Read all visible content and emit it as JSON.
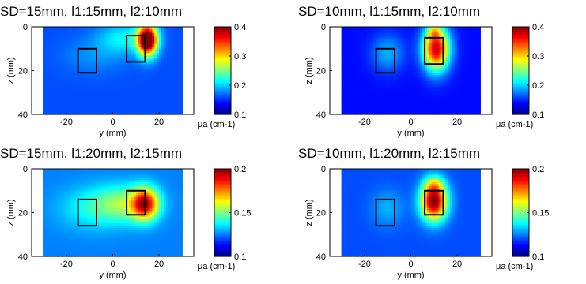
{
  "chart_data": [
    {
      "type": "heatmap",
      "title": "SD=15mm, l1:15mm, l2:10mm",
      "xlabel": "y (mm)",
      "ylabel": "z (mm)",
      "colorbar_label": "μa (cm-1)",
      "xlim": [
        -35,
        35
      ],
      "ylim": [
        0,
        40
      ],
      "xticks": [
        "-20",
        "0",
        "20"
      ],
      "yticks": [
        "0",
        "20",
        "40"
      ],
      "clim": [
        0.1,
        0.4
      ],
      "colorbar_ticks": [
        "0.1",
        "0.2",
        "0.3",
        "0.4"
      ],
      "background": 0.16,
      "hotspots": [
        {
          "y": 15,
          "z": 6,
          "sy": 3,
          "sz": 5,
          "amp": 0.28
        },
        {
          "y": 5,
          "z": 5,
          "sy": 8,
          "sz": 5,
          "amp": 0.05
        },
        {
          "y": -8,
          "z": 13,
          "sy": 10,
          "sz": 6,
          "amp": 0.02
        }
      ],
      "inclusions": [
        {
          "y_min": -15,
          "y_max": -7,
          "z_min": 10,
          "z_max": 21
        },
        {
          "y_min": 6,
          "y_max": 14,
          "z_min": 4,
          "z_max": 16
        }
      ]
    },
    {
      "type": "heatmap",
      "title": "SD=10mm, l1:15mm, l2:10mm",
      "xlabel": "y (mm)",
      "ylabel": "z (mm)",
      "colorbar_label": "μa (cm-1)",
      "xlim": [
        -35,
        35
      ],
      "ylim": [
        0,
        40
      ],
      "xticks": [
        "-20",
        "0",
        "20"
      ],
      "yticks": [
        "0",
        "20",
        "40"
      ],
      "clim": [
        0.1,
        0.4
      ],
      "colorbar_ticks": [
        "0.1",
        "0.2",
        "0.3",
        "0.4"
      ],
      "background": 0.14,
      "hotspots": [
        {
          "y": 11,
          "z": 10,
          "sy": 4,
          "sz": 7,
          "amp": 0.24
        },
        {
          "y": 10,
          "z": 2,
          "sy": 2,
          "sz": 2,
          "amp": 0.06
        },
        {
          "y": -10,
          "z": 12,
          "sy": 5,
          "sz": 6,
          "amp": 0.05
        }
      ],
      "inclusions": [
        {
          "y_min": -15,
          "y_max": -7,
          "z_min": 10,
          "z_max": 21
        },
        {
          "y_min": 6,
          "y_max": 14,
          "z_min": 5,
          "z_max": 17
        }
      ]
    },
    {
      "type": "heatmap",
      "title": "SD=15mm, l1:20mm, l2:15mm",
      "xlabel": "y (mm)",
      "ylabel": "z (mm)",
      "colorbar_label": "μa (cm-1)",
      "xlim": [
        -35,
        35
      ],
      "ylim": [
        0,
        40
      ],
      "xticks": [
        "-20",
        "0",
        "20"
      ],
      "yticks": [
        "0",
        "20",
        "40"
      ],
      "clim": [
        0.1,
        0.2
      ],
      "colorbar_ticks": [
        "0.1",
        "0.15",
        "0.2"
      ],
      "background": 0.125,
      "hotspots": [
        {
          "y": 14,
          "z": 16,
          "sy": 4,
          "sz": 5,
          "amp": 0.06
        },
        {
          "y": 5,
          "z": 16,
          "sy": 9,
          "sz": 6,
          "amp": 0.025
        },
        {
          "y": -10,
          "z": 18,
          "sy": 10,
          "sz": 7,
          "amp": 0.012
        }
      ],
      "inclusions": [
        {
          "y_min": -15,
          "y_max": -7,
          "z_min": 14,
          "z_max": 26
        },
        {
          "y_min": 6,
          "y_max": 14,
          "z_min": 10,
          "z_max": 21
        }
      ]
    },
    {
      "type": "heatmap",
      "title": "SD=10mm, l1:20mm, l2:15mm",
      "xlabel": "y (mm)",
      "ylabel": "z (mm)",
      "colorbar_label": "μa (cm-1)",
      "xlim": [
        -35,
        35
      ],
      "ylim": [
        0,
        40
      ],
      "xticks": [
        "-20",
        "0",
        "20"
      ],
      "yticks": [
        "0",
        "20",
        "40"
      ],
      "clim": [
        0.1,
        0.2
      ],
      "colorbar_ticks": [
        "0.1",
        "0.15",
        "0.2"
      ],
      "background": 0.12,
      "hotspots": [
        {
          "y": 10,
          "z": 15,
          "sy": 4,
          "sz": 6,
          "amp": 0.08
        },
        {
          "y": 10,
          "z": 7,
          "sy": 3,
          "sz": 3,
          "amp": 0.02
        },
        {
          "y": -10,
          "z": 18,
          "sy": 5,
          "sz": 6,
          "amp": 0.01
        }
      ],
      "inclusions": [
        {
          "y_min": -15,
          "y_max": -7,
          "z_min": 14,
          "z_max": 26
        },
        {
          "y_min": 6,
          "y_max": 14,
          "z_min": 10,
          "z_max": 21
        }
      ]
    }
  ]
}
